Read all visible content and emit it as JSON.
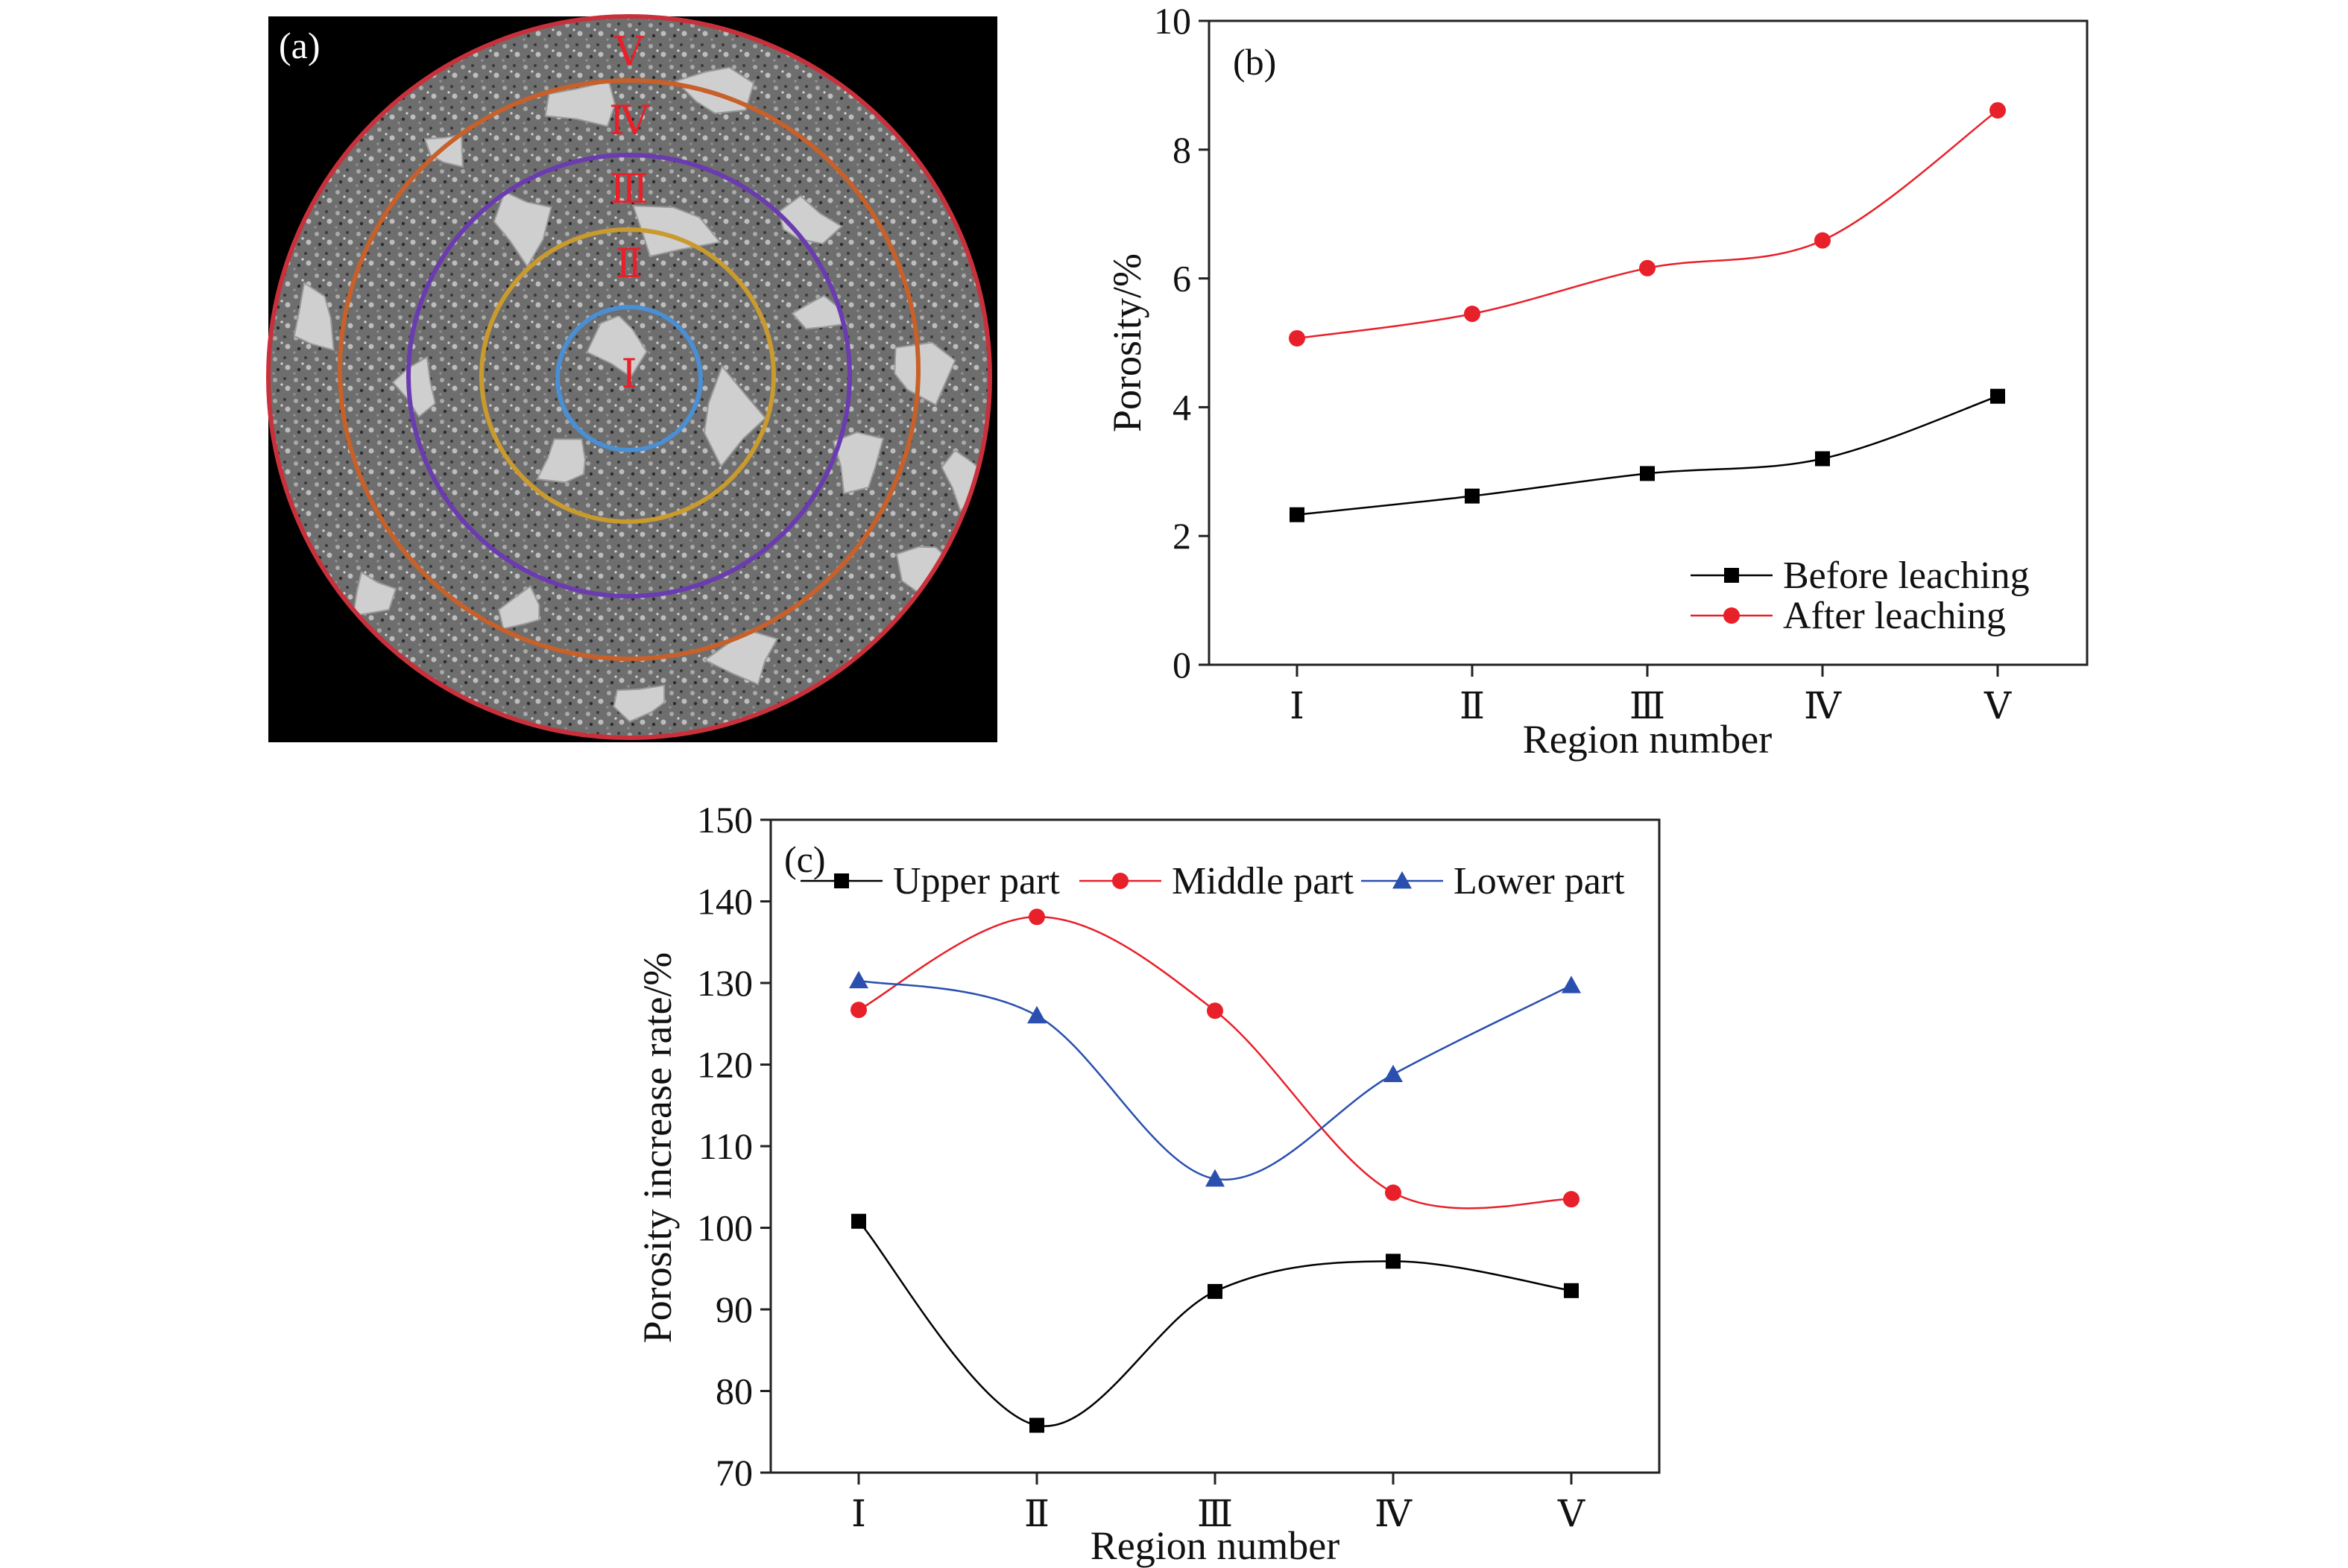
{
  "panels": {
    "a": {
      "label": "(a)",
      "ring_labels": [
        "Ⅴ",
        "Ⅳ",
        "Ⅲ",
        "Ⅱ",
        "Ⅰ"
      ],
      "ring_colors": [
        "#c8313c",
        "#c8602a",
        "#6a3cb0",
        "#c99a2e",
        "#4a8fd4"
      ]
    },
    "b": {
      "label": "(b)"
    },
    "c": {
      "label": "(c)"
    }
  },
  "chart_data": [
    {
      "panel": "b",
      "type": "line",
      "categories": [
        "Ⅰ",
        "Ⅱ",
        "Ⅲ",
        "Ⅳ",
        "Ⅴ"
      ],
      "xlabel": "Region number",
      "ylabel": "Porosity/%",
      "ylim": [
        0,
        10
      ],
      "yticks": [
        0,
        2,
        4,
        6,
        8,
        10
      ],
      "legend_position": "bottom-right",
      "series": [
        {
          "name": "Before leaching",
          "marker": "square",
          "color": "#000000",
          "values": [
            2.33,
            2.62,
            2.97,
            3.2,
            4.17
          ]
        },
        {
          "name": "After leaching",
          "marker": "circle",
          "color": "#e8202a",
          "values": [
            5.07,
            5.45,
            6.16,
            6.59,
            8.61
          ]
        }
      ]
    },
    {
      "panel": "c",
      "type": "scatter",
      "categories": [
        "Ⅰ",
        "Ⅱ",
        "Ⅲ",
        "Ⅳ",
        "Ⅴ"
      ],
      "xlabel": "Region number",
      "ylabel": "Porosity increase rate/%",
      "ylim": [
        70,
        150
      ],
      "yticks": [
        70,
        80,
        90,
        100,
        110,
        120,
        130,
        140,
        150
      ],
      "legend_position": "top",
      "series": [
        {
          "name": "Upper part",
          "marker": "square",
          "color": "#000000",
          "values": [
            100.8,
            75.8,
            92.2,
            95.9,
            92.3
          ]
        },
        {
          "name": "Middle part",
          "marker": "circle",
          "color": "#e8202a",
          "values": [
            126.7,
            138.1,
            126.6,
            104.3,
            103.5
          ]
        },
        {
          "name": "Lower part",
          "marker": "triangle",
          "color": "#2a4faf",
          "values": [
            130.3,
            126.0,
            106.0,
            118.8,
            129.7
          ]
        }
      ]
    }
  ]
}
